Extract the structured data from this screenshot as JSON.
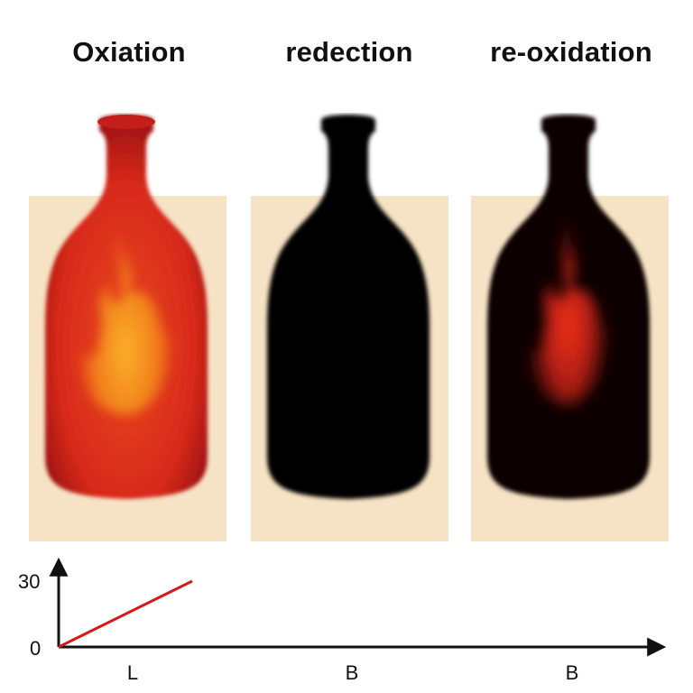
{
  "stages": [
    {
      "title": "Oxiation",
      "state": "oxidized",
      "bottle_colors": [
        "#f7a21a",
        "#e8541a",
        "#c4191a"
      ]
    },
    {
      "title": "redection",
      "state": "reduced",
      "bottle_colors": [
        "#050505",
        "#050505",
        "#050505"
      ]
    },
    {
      "title": "re-oxidation",
      "state": "re-oxidized",
      "bottle_colors": [
        "#f0301a",
        "#8a1a10",
        "#070505"
      ]
    }
  ],
  "panel_color": "#f6e2c4",
  "graph": {
    "y_ticks": [
      "30",
      "0"
    ],
    "x_categories": [
      "L",
      "B",
      "B"
    ],
    "line_color": "#d41a1a",
    "axis_color": "#111111"
  }
}
